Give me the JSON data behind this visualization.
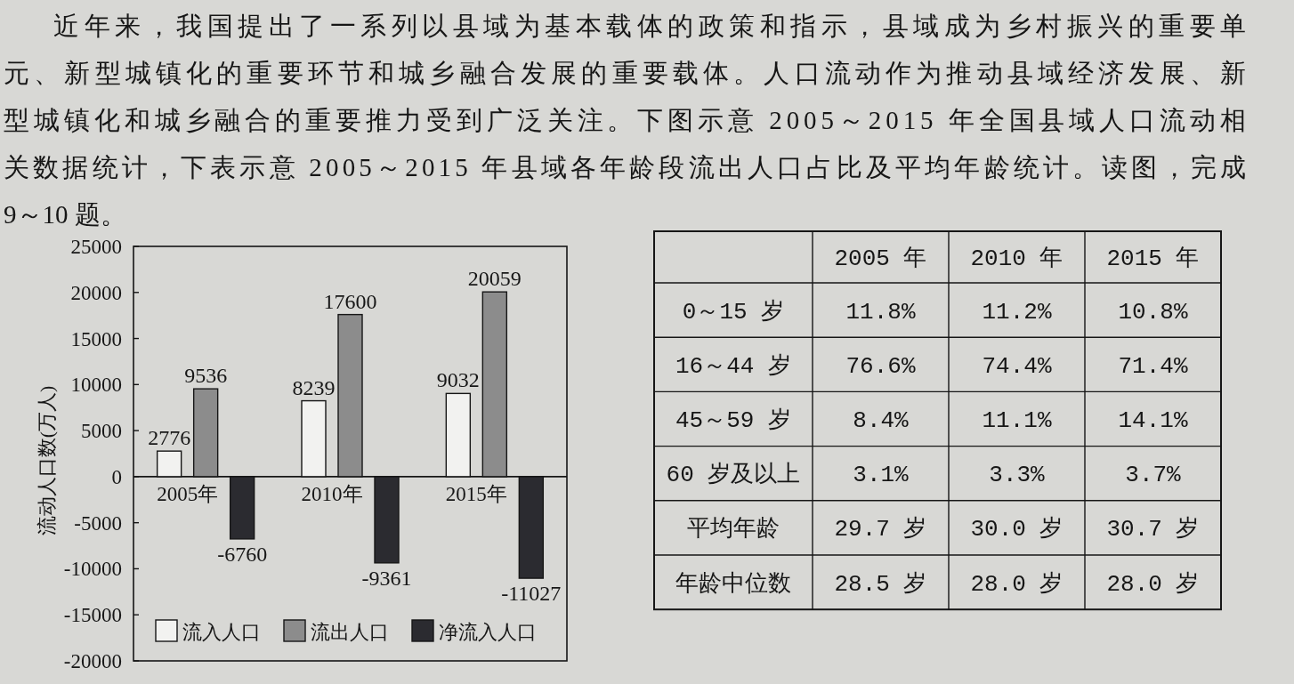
{
  "chart_data": [
    {
      "type": "bar",
      "categories": [
        "2005年",
        "2010年",
        "2015年"
      ],
      "series": [
        {
          "name": "流入人口",
          "color": "#f2f2f0",
          "values": [
            2776,
            8239,
            9032
          ]
        },
        {
          "name": "流出人口",
          "color": "#8c8c8c",
          "values": [
            9536,
            17600,
            20059
          ]
        },
        {
          "name": "净流入人口",
          "color": "#2b2b30",
          "values": [
            -6760,
            -9361,
            -11027
          ]
        }
      ],
      "ylabel": "流动人口数(万人)",
      "ylim": [
        -20000,
        25000
      ],
      "yticks": [
        -20000,
        -15000,
        -10000,
        -5000,
        0,
        5000,
        10000,
        15000,
        20000,
        25000
      ],
      "data_labels": true,
      "legend": "bottom",
      "annotations": [
        "近年来，我国提出了一系列以县域为基本载体的政策和指示，县域成为乡村振兴的重要单",
        "元、新型城镇化的重要环节和城乡融合发展的重要载体。人口流动作为推动县域经济发展、新",
        "型城镇化和城乡融合的重要推力受到广泛关注。下图示意 2005～2015 年全国县域人口流动相",
        "关数据统计，下表示意 2005～2015 年县域各年龄段流出人口占比及平均年龄统计。读图，完成",
        "9～10 题。"
      ]
    },
    {
      "type": "other",
      "categories": [
        "2005 年",
        "2010 年",
        "2015 年"
      ],
      "y_categories": [
        "0～15 岁",
        "16～44 岁",
        "45～59 岁",
        "60 岁及以上",
        "平均年龄",
        "年龄中位数"
      ],
      "cell_labels": [
        [
          "11.8%",
          "11.2%",
          "10.8%"
        ],
        [
          "76.6%",
          "74.4%",
          "71.4%"
        ],
        [
          "8.4%",
          "11.1%",
          "14.1%"
        ],
        [
          "3.1%",
          "3.3%",
          "3.7%"
        ],
        [
          "29.7 岁",
          "30.0 岁",
          "30.7 岁"
        ],
        [
          "28.5 岁",
          "28.0 岁",
          "28.0 岁"
        ]
      ]
    }
  ]
}
